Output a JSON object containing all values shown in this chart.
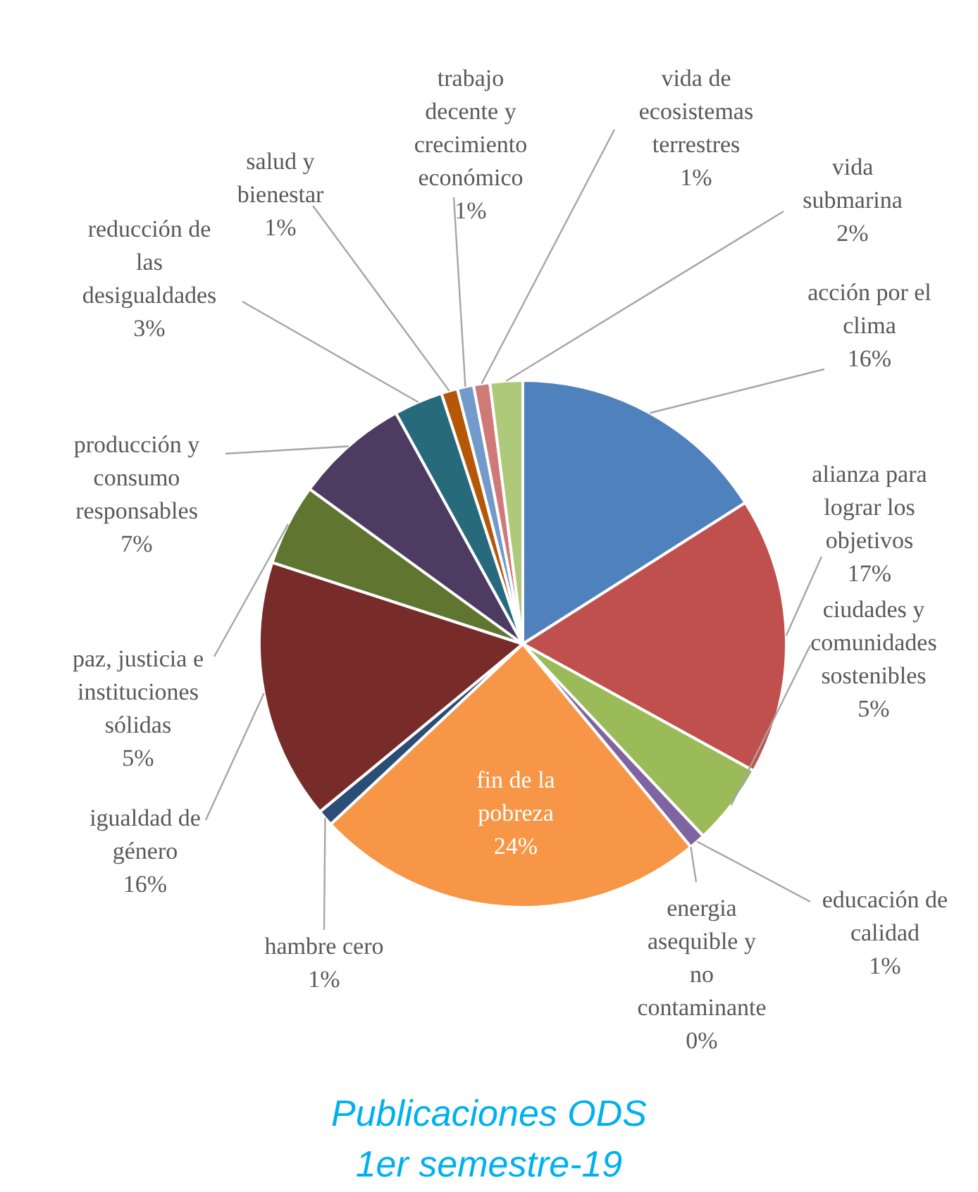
{
  "chart_data": {
    "type": "pie",
    "title": "Publicaciones ODS 1er semestre-19",
    "categories": [
      "acción por el clima",
      "alianza para lograr los objetivos",
      "ciudades y comunidades sostenibles",
      "educación de calidad",
      "energia asequible y no contaminante",
      "fin de la pobreza",
      "hambre cero",
      "igualdad de género",
      "paz, justicia e instituciones sólidas",
      "producción y consumo responsables",
      "reducción de las desigualdades",
      "salud y bienestar",
      "trabajo decente y crecimiento económico",
      "vida de ecosistemas terrestres",
      "vida submarina"
    ],
    "values": [
      16,
      17,
      5,
      1,
      0,
      24,
      1,
      16,
      5,
      7,
      3,
      1,
      1,
      1,
      2
    ],
    "value_labels": [
      "16%",
      "17%",
      "5%",
      "1%",
      "0%",
      "24%",
      "1%",
      "16%",
      "5%",
      "7%",
      "3%",
      "1%",
      "1%",
      "1%",
      "2%"
    ],
    "colors": [
      "#4f81bd",
      "#c0504d",
      "#9bbb59",
      "#8064a2",
      "#4bacc6",
      "#f79646",
      "#2c4d75",
      "#772c2a",
      "#5f7530",
      "#4d3b62",
      "#276a7c",
      "#b65708",
      "#729aca",
      "#d07a78",
      "#afc97a"
    ]
  }
}
